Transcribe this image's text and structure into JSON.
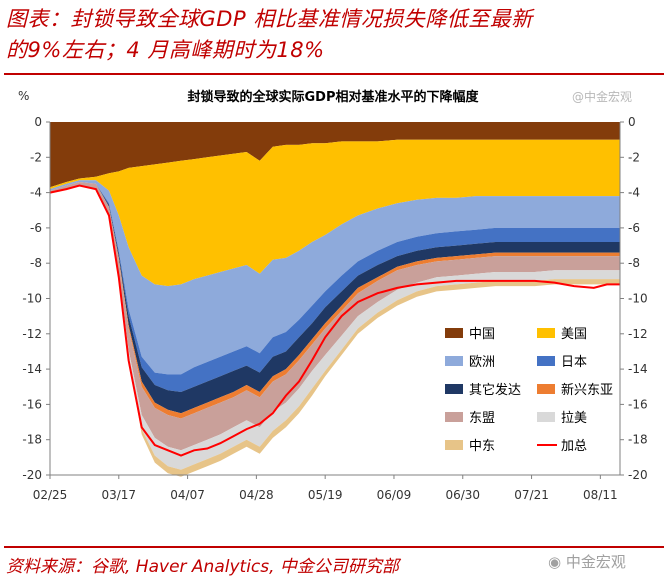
{
  "header": {
    "title_line1": "图表：封锁导致全球GDP 相比基准情况损失降低至最新",
    "title_line2": "的9%左右；4 月高峰期时为18%"
  },
  "footer": {
    "source": "资料来源：谷歌, Haver Analytics, 中金公司研究部"
  },
  "watermarks": {
    "top": "@中金宏观",
    "bottom": "中金宏观"
  },
  "colors": {
    "china": "#833c0b",
    "usa": "#ffc000",
    "europe": "#8eaadb",
    "japan": "#4472c4",
    "other_developed": "#1f3864",
    "emerging_asia": "#ed7d31",
    "asean": "#c9a09a",
    "latam": "#d9d9d9",
    "middle_east": "#e7c488",
    "total": "#ff0000",
    "title": "#c00000"
  },
  "chart_data": {
    "type": "area",
    "title": "封锁导致的全球实际GDP相对基准水平的下降幅度",
    "ylabel": "%",
    "ylim": [
      -20,
      0
    ],
    "yticks": [
      0,
      -2,
      -4,
      -6,
      -8,
      -10,
      -12,
      -14,
      -16,
      -18,
      -20
    ],
    "xlim": [
      "2020-02-25",
      "2020-08-17"
    ],
    "xtick_labels": [
      "02/25",
      "03/17",
      "04/07",
      "04/28",
      "05/19",
      "06/09",
      "06/30",
      "07/21",
      "08/11"
    ],
    "xtick_dates": [
      "2020-02-25",
      "2020-03-17",
      "2020-04-07",
      "2020-04-28",
      "2020-05-19",
      "2020-06-09",
      "2020-06-30",
      "2020-07-21",
      "2020-08-11"
    ],
    "legend": "bottom-right",
    "x": [
      "2020-02-25",
      "2020-03-01",
      "2020-03-05",
      "2020-03-10",
      "2020-03-14",
      "2020-03-17",
      "2020-03-20",
      "2020-03-24",
      "2020-03-28",
      "2020-04-01",
      "2020-04-05",
      "2020-04-09",
      "2020-04-13",
      "2020-04-17",
      "2020-04-21",
      "2020-04-25",
      "2020-04-29",
      "2020-05-03",
      "2020-05-07",
      "2020-05-11",
      "2020-05-15",
      "2020-05-19",
      "2020-05-24",
      "2020-05-29",
      "2020-06-04",
      "2020-06-10",
      "2020-06-16",
      "2020-06-22",
      "2020-06-28",
      "2020-07-04",
      "2020-07-10",
      "2020-07-16",
      "2020-07-22",
      "2020-07-28",
      "2020-08-03",
      "2020-08-09",
      "2020-08-13",
      "2020-08-17"
    ],
    "series": [
      {
        "name": "中国",
        "key": "china",
        "values": [
          -3.7,
          -3.4,
          -3.2,
          -3.1,
          -2.9,
          -2.8,
          -2.6,
          -2.5,
          -2.4,
          -2.3,
          -2.2,
          -2.1,
          -2.0,
          -1.9,
          -1.8,
          -1.7,
          -2.2,
          -1.4,
          -1.3,
          -1.3,
          -1.2,
          -1.2,
          -1.1,
          -1.1,
          -1.1,
          -1.0,
          -1.0,
          -1.0,
          -1.0,
          -1.0,
          -1.0,
          -1.0,
          -1.0,
          -1.0,
          -1.0,
          -1.0,
          -1.0,
          -1.0
        ]
      },
      {
        "name": "美国",
        "key": "usa",
        "values": [
          -0.1,
          -0.1,
          -0.1,
          -0.2,
          -1.0,
          -2.5,
          -4.5,
          -6.2,
          -6.8,
          -7.0,
          -7.0,
          -6.8,
          -6.7,
          -6.6,
          -6.5,
          -6.4,
          -6.4,
          -6.4,
          -6.4,
          -6.0,
          -5.6,
          -5.2,
          -4.7,
          -4.2,
          -3.8,
          -3.6,
          -3.4,
          -3.3,
          -3.3,
          -3.2,
          -3.2,
          -3.2,
          -3.2,
          -3.2,
          -3.2,
          -3.2,
          -3.2,
          -3.2
        ]
      },
      {
        "name": "欧洲",
        "key": "europe",
        "values": [
          -0.1,
          -0.1,
          -0.1,
          -0.2,
          -0.7,
          -2.0,
          -3.5,
          -4.6,
          -5.0,
          -5.0,
          -5.1,
          -5.0,
          -4.9,
          -4.8,
          -4.7,
          -4.6,
          -4.5,
          -4.4,
          -4.2,
          -3.9,
          -3.6,
          -3.2,
          -2.9,
          -2.6,
          -2.4,
          -2.2,
          -2.1,
          -2.0,
          -1.9,
          -1.9,
          -1.8,
          -1.8,
          -1.8,
          -1.8,
          -1.8,
          -1.8,
          -1.8,
          -1.8
        ]
      },
      {
        "name": "日本",
        "key": "japan",
        "values": [
          0,
          0,
          0,
          0,
          -0.1,
          -0.2,
          -0.4,
          -0.6,
          -0.7,
          -0.9,
          -1.0,
          -1.1,
          -1.1,
          -1.1,
          -1.1,
          -1.1,
          -1.1,
          -1.1,
          -1.1,
          -1.0,
          -1.0,
          -0.9,
          -0.9,
          -0.8,
          -0.8,
          -0.8,
          -0.8,
          -0.8,
          -0.8,
          -0.8,
          -0.8,
          -0.8,
          -0.8,
          -0.8,
          -0.8,
          -0.8,
          -0.8,
          -0.8
        ]
      },
      {
        "name": "其它发达",
        "key": "other_developed",
        "values": [
          0,
          0,
          0,
          0,
          -0.1,
          -0.2,
          -0.5,
          -0.8,
          -1.0,
          -1.1,
          -1.2,
          -1.2,
          -1.2,
          -1.2,
          -1.2,
          -1.1,
          -1.1,
          -1.1,
          -1.0,
          -1.0,
          -0.9,
          -0.9,
          -0.8,
          -0.7,
          -0.7,
          -0.6,
          -0.6,
          -0.6,
          -0.6,
          -0.6,
          -0.6,
          -0.6,
          -0.6,
          -0.6,
          -0.6,
          -0.6,
          -0.6,
          -0.6
        ]
      },
      {
        "name": "新兴东亚",
        "key": "emerging_asia",
        "values": [
          0,
          0,
          0,
          0,
          0,
          -0.1,
          -0.2,
          -0.3,
          -0.3,
          -0.3,
          -0.3,
          -0.3,
          -0.3,
          -0.3,
          -0.3,
          -0.3,
          -0.3,
          -0.3,
          -0.3,
          -0.3,
          -0.3,
          -0.3,
          -0.3,
          -0.3,
          -0.2,
          -0.2,
          -0.2,
          -0.2,
          -0.2,
          -0.2,
          -0.2,
          -0.2,
          -0.2,
          -0.2,
          -0.2,
          -0.2,
          -0.2,
          -0.2
        ]
      },
      {
        "name": "东盟",
        "key": "asean",
        "values": [
          -0.1,
          -0.2,
          -0.2,
          -0.3,
          -0.5,
          -0.8,
          -1.2,
          -1.6,
          -1.7,
          -1.8,
          -1.8,
          -1.8,
          -1.8,
          -1.8,
          -1.7,
          -1.7,
          -1.7,
          -1.7,
          -1.6,
          -1.6,
          -1.5,
          -1.5,
          -1.4,
          -1.3,
          -1.2,
          -1.1,
          -1.0,
          -0.9,
          -0.9,
          -0.9,
          -0.9,
          -0.9,
          -0.9,
          -0.8,
          -0.8,
          -0.8,
          -0.8,
          -0.8
        ]
      },
      {
        "name": "拉美",
        "key": "latam",
        "values": [
          0,
          0,
          0,
          0,
          0,
          -0.1,
          -0.4,
          -0.8,
          -1.0,
          -1.1,
          -1.1,
          -1.1,
          -1.1,
          -1.1,
          -1.1,
          -1.1,
          -1.1,
          -1.1,
          -1.0,
          -1.0,
          -1.0,
          -0.9,
          -0.8,
          -0.7,
          -0.6,
          -0.6,
          -0.5,
          -0.5,
          -0.5,
          -0.5,
          -0.5,
          -0.5,
          -0.5,
          -0.5,
          -0.5,
          -0.5,
          -0.5,
          -0.5
        ]
      },
      {
        "name": "中东",
        "key": "middle_east",
        "values": [
          0,
          0,
          0,
          0,
          0,
          -0.1,
          -0.2,
          -0.3,
          -0.4,
          -0.4,
          -0.4,
          -0.4,
          -0.4,
          -0.4,
          -0.4,
          -0.4,
          -0.4,
          -0.4,
          -0.4,
          -0.4,
          -0.4,
          -0.3,
          -0.3,
          -0.3,
          -0.3,
          -0.3,
          -0.3,
          -0.3,
          -0.3,
          -0.3,
          -0.3,
          -0.3,
          -0.3,
          -0.3,
          -0.3,
          -0.3,
          -0.3,
          -0.3
        ]
      }
    ],
    "total": {
      "name": "加总",
      "key": "total",
      "values": [
        -4.0,
        -3.8,
        -3.6,
        -3.8,
        -5.3,
        -8.8,
        -13.5,
        -17.3,
        -18.3,
        -18.6,
        -18.9,
        -18.6,
        -18.5,
        -18.2,
        -17.8,
        -17.4,
        -17.1,
        -16.5,
        -15.5,
        -14.7,
        -13.5,
        -12.2,
        -11.0,
        -10.2,
        -9.7,
        -9.4,
        -9.2,
        -9.1,
        -9.0,
        -9.0,
        -9.0,
        -9.0,
        -9.0,
        -9.1,
        -9.3,
        -9.4,
        -9.2,
        -9.2
      ]
    }
  }
}
